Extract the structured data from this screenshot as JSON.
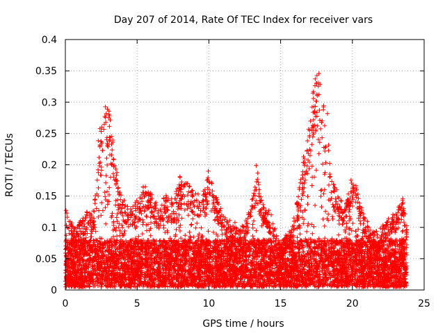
{
  "chart_data": {
    "type": "scatter",
    "title": "Day 207 of 2014, Rate Of TEC Index for receiver vars",
    "xlabel": "GPS time / hours",
    "ylabel": "ROTI / TECUs",
    "xlim": [
      0,
      25
    ],
    "ylim": [
      0,
      0.4
    ],
    "xticks": [
      "0",
      "5",
      "10",
      "15",
      "20",
      "25"
    ],
    "yticks": [
      "0",
      "0.05",
      "0.1",
      "0.15",
      "0.2",
      "0.25",
      "0.3",
      "0.35",
      "0.4"
    ],
    "grid": true,
    "marker": "+",
    "color": "#ff0000",
    "data_extent_hours": [
      0,
      23.8
    ],
    "envelope": {
      "description": "approximate upper envelope of ROTI values (hours, TECU)",
      "x": [
        0,
        0.2,
        0.5,
        1,
        1.5,
        2,
        2.3,
        2.5,
        2.7,
        3,
        3.2,
        3.5,
        4,
        4.5,
        5,
        5.5,
        6,
        6.5,
        7,
        7.5,
        8,
        8.5,
        9,
        9.5,
        10,
        10.5,
        11,
        11.5,
        12,
        12.5,
        13,
        13.3,
        13.6,
        14,
        14.5,
        15,
        15.5,
        16,
        16.5,
        17,
        17.3,
        17.6,
        18,
        18.3,
        18.6,
        19,
        19.5,
        20,
        20.5,
        21,
        21.5,
        22,
        22.5,
        23,
        23.5,
        23.8
      ],
      "y": [
        0.14,
        0.12,
        0.1,
        0.11,
        0.12,
        0.13,
        0.24,
        0.28,
        0.3,
        0.3,
        0.26,
        0.2,
        0.14,
        0.13,
        0.14,
        0.17,
        0.15,
        0.13,
        0.15,
        0.14,
        0.18,
        0.17,
        0.16,
        0.14,
        0.19,
        0.15,
        0.12,
        0.11,
        0.1,
        0.11,
        0.14,
        0.21,
        0.15,
        0.13,
        0.11,
        0.07,
        0.09,
        0.12,
        0.2,
        0.26,
        0.33,
        0.35,
        0.3,
        0.28,
        0.18,
        0.15,
        0.13,
        0.19,
        0.14,
        0.11,
        0.09,
        0.1,
        0.11,
        0.12,
        0.15,
        0.11
      ]
    }
  }
}
